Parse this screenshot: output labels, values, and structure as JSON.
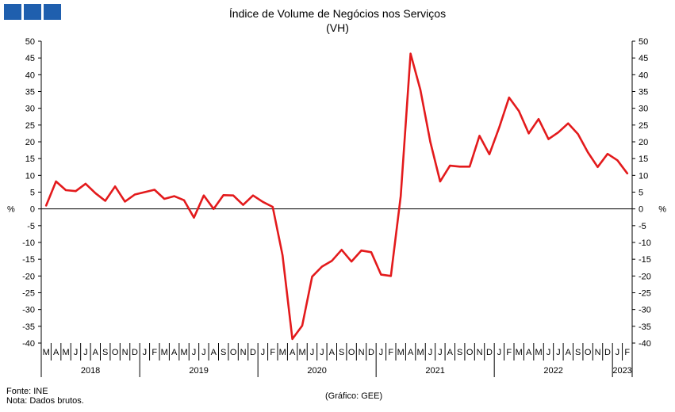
{
  "header": {
    "logo_name": "gee-logo",
    "title": "Índice de Volume de Negócios nos Serviços",
    "subtitle": "(VH)"
  },
  "footer": {
    "source": "Fonte: INE",
    "note": "Nota: Dados brutos.",
    "credit": "(Gráfico: GEE)"
  },
  "chart_data": {
    "type": "line",
    "title": "Índice de Volume de Negócios nos Serviços",
    "subtitle": "(VH)",
    "ylabel_left": "%",
    "ylabel_right": "%",
    "ylim": [
      -40,
      50
    ],
    "yticks": [
      50,
      45,
      40,
      35,
      30,
      25,
      20,
      15,
      10,
      5,
      0,
      -5,
      -10,
      -15,
      -20,
      -25,
      -30,
      -35,
      -40
    ],
    "grid": false,
    "line_color": "#e31a1c",
    "categories": [
      "M",
      "A",
      "M",
      "J",
      "J",
      "A",
      "S",
      "O",
      "N",
      "D",
      "J",
      "F",
      "M",
      "A",
      "M",
      "J",
      "J",
      "A",
      "S",
      "O",
      "N",
      "D",
      "J",
      "F",
      "M",
      "A",
      "M",
      "J",
      "J",
      "A",
      "S",
      "O",
      "N",
      "D",
      "J",
      "F",
      "M",
      "A",
      "M",
      "J",
      "J",
      "A",
      "S",
      "O",
      "N",
      "D",
      "J",
      "F",
      "M",
      "A",
      "M",
      "J",
      "J",
      "A",
      "S",
      "O",
      "N",
      "D",
      "J",
      "F"
    ],
    "year_labels": [
      {
        "label": "2018",
        "start": 0,
        "end": 9
      },
      {
        "label": "2019",
        "start": 10,
        "end": 21
      },
      {
        "label": "2020",
        "start": 22,
        "end": 33
      },
      {
        "label": "2021",
        "start": 34,
        "end": 45
      },
      {
        "label": "2022",
        "start": 46,
        "end": 57
      },
      {
        "label": "2023",
        "start": 58,
        "end": 59
      }
    ],
    "series": [
      {
        "values": [
          1.0,
          8.2,
          5.6,
          5.3,
          7.5,
          4.7,
          2.4,
          6.7,
          2.2,
          4.3,
          5.0,
          5.7,
          3.0,
          3.8,
          2.6,
          -2.6,
          4.0,
          0.0,
          4.1,
          4.0,
          1.2,
          4.0,
          2.1,
          0.6,
          -13.8,
          -38.8,
          -34.8,
          -20.2,
          -17.2,
          -15.5,
          -12.2,
          -15.7,
          -12.4,
          -12.9,
          -19.6,
          -20.0,
          3.8,
          46.3,
          35.5,
          20.0,
          8.2,
          12.9,
          12.6,
          12.6,
          21.8,
          16.3,
          24.3,
          33.2,
          29.2,
          22.5,
          26.8,
          20.8,
          22.8,
          25.5,
          22.3,
          16.9,
          12.5,
          16.4,
          14.5,
          10.6
        ]
      }
    ]
  }
}
